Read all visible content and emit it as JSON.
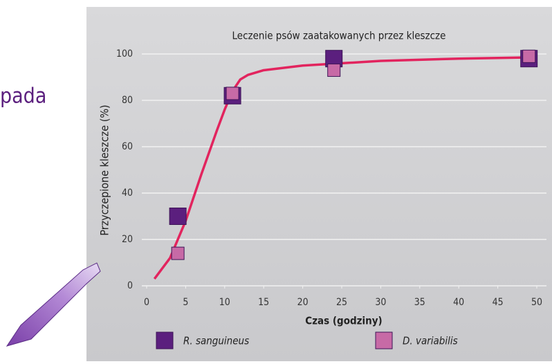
{
  "page_text": "pada",
  "chart_data": {
    "type": "line",
    "title": "Leczenie psów  zaatakowanych przez kleszcze",
    "x_label": "Czas (godziny)",
    "y_label": "Przyczepione kleszcze (%)",
    "xlim": [
      0,
      50
    ],
    "xticks": [
      0,
      5,
      10,
      15,
      20,
      25,
      30,
      35,
      40,
      45,
      50
    ],
    "ylim": [
      0,
      100
    ],
    "yticks": [
      0,
      20,
      40,
      60,
      80,
      100
    ],
    "grid": true,
    "series": [
      {
        "color": "#e2245e",
        "x": [
          1,
          3,
          5,
          7,
          9,
          10,
          11,
          12,
          13,
          15,
          20,
          25,
          30,
          40,
          49
        ],
        "values": [
          3,
          12,
          28,
          48,
          67,
          76,
          84,
          89,
          91,
          93,
          95,
          96,
          97,
          98,
          98.5
        ]
      },
      {
        "name": "R. sanguineus",
        "color": "#5b1f7e",
        "marker": "square",
        "x": [
          4,
          11,
          24,
          49
        ],
        "values": [
          30,
          82,
          98,
          98
        ]
      },
      {
        "name": "D. variabilis",
        "color": "#c76aa6",
        "marker": "square",
        "x": [
          4,
          11,
          24,
          49
        ],
        "values": [
          14,
          83,
          93,
          99
        ]
      }
    ]
  }
}
